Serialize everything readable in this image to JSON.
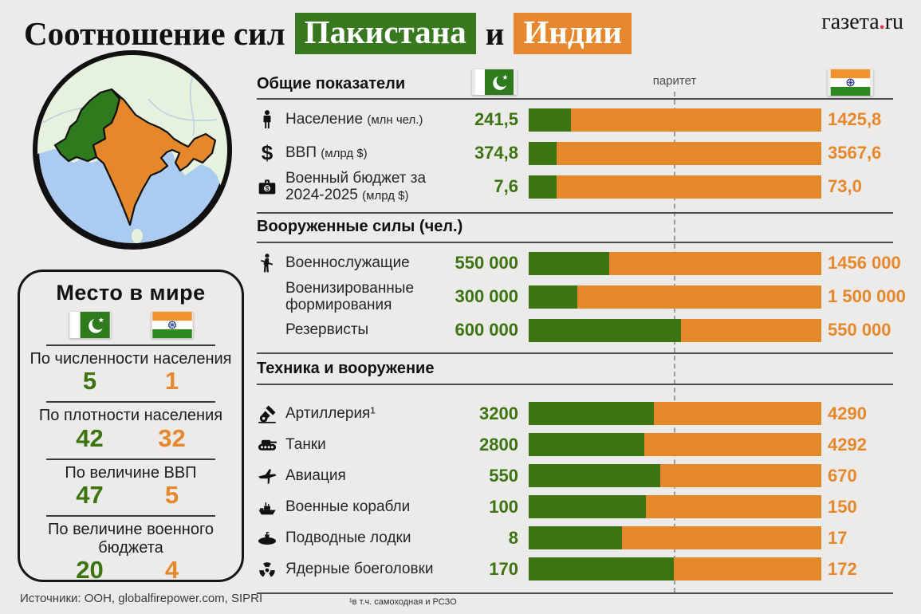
{
  "title": {
    "prefix": "Соотношение сил",
    "pakistan": "Пакистана",
    "conjunction": "и",
    "india": "Индии"
  },
  "logo": {
    "main": "газета",
    "dot": ".",
    "tld": "ru"
  },
  "parity_label": "паритет",
  "sources": "Источники: ООН, globalfirepower.com, SIPRI",
  "footnote": "¹в т.ч. самоходная и РСЗО",
  "colors": {
    "pakistan_green": "#3c7412",
    "india_orange": "#e5882b",
    "badge_green": "#38791f",
    "badge_orange": "#e8882e",
    "background": "#edeaea"
  },
  "world_rank": {
    "title": "Место в мире",
    "flags": [
      "pakistan-flag",
      "india-flag"
    ],
    "rows": [
      {
        "label": "По численности населения",
        "pak": "5",
        "ind": "1"
      },
      {
        "label": "По плотности населения",
        "pak": "42",
        "ind": "32"
      },
      {
        "label": "По величине ВВП",
        "pak": "47",
        "ind": "5"
      },
      {
        "label": "По величине военного бюджета",
        "pak": "20",
        "ind": "4"
      }
    ]
  },
  "chart_data": {
    "type": "bar",
    "variant": "proportional-stacked-horizontal",
    "series": [
      {
        "name": "Пакистан"
      },
      {
        "name": "Индия"
      }
    ],
    "legend": {
      "left_flag": "pakistan-flag",
      "right_flag": "india-flag",
      "parity_line": "center-dashed"
    },
    "sections": [
      {
        "header": "Общие показатели",
        "rows": [
          {
            "icon": "person-icon",
            "label": "Население",
            "note": "(млн чел.)",
            "pak": 241.5,
            "ind": 1425.8,
            "pak_display": "241,5",
            "ind_display": "1425,8"
          },
          {
            "icon": "dollar-icon",
            "label": "ВВП",
            "note": "(млрд $)",
            "pak": 374.8,
            "ind": 3567.6,
            "pak_display": "374,8",
            "ind_display": "3567,6"
          },
          {
            "icon": "briefcase-icon",
            "label": "Военный бюджет за 2024-2025",
            "note": "(млрд $)",
            "pak": 7.6,
            "ind": 73.0,
            "pak_display": "7,6",
            "ind_display": "73,0"
          }
        ]
      },
      {
        "header": "Вооруженные силы (чел.)",
        "rows": [
          {
            "icon": "soldier-icon",
            "label": "Военнослужащие",
            "note": "",
            "pak": 550000,
            "ind": 1456000,
            "pak_display": "550 000",
            "ind_display": "1456 000"
          },
          {
            "icon": "",
            "label": "Военизированные формирования",
            "note": "",
            "pak": 300000,
            "ind": 1500000,
            "pak_display": "300 000",
            "ind_display": "1 500 000"
          },
          {
            "icon": "",
            "label": "Резервисты",
            "note": "",
            "pak": 600000,
            "ind": 550000,
            "pak_display": "600 000",
            "ind_display": "550 000"
          }
        ]
      },
      {
        "header": "Техника и вооружение",
        "rows": [
          {
            "icon": "artillery-icon",
            "label": "Артиллерия¹",
            "note": "",
            "pak": 3200,
            "ind": 4290,
            "pak_display": "3200",
            "ind_display": "4290"
          },
          {
            "icon": "tank-icon",
            "label": "Танки",
            "note": "",
            "pak": 2800,
            "ind": 4292,
            "pak_display": "2800",
            "ind_display": "4292"
          },
          {
            "icon": "jet-icon",
            "label": "Авиация",
            "note": "",
            "pak": 550,
            "ind": 670,
            "pak_display": "550",
            "ind_display": "670"
          },
          {
            "icon": "ship-icon",
            "label": "Военные корабли",
            "note": "",
            "pak": 100,
            "ind": 150,
            "pak_display": "100",
            "ind_display": "150"
          },
          {
            "icon": "submarine-icon",
            "label": "Подводные лодки",
            "note": "",
            "pak": 8,
            "ind": 17,
            "pak_display": "8",
            "ind_display": "17"
          },
          {
            "icon": "warhead-icon",
            "label": "Ядерные боеголовки",
            "note": "",
            "pak": 170,
            "ind": 172,
            "pak_display": "170",
            "ind_display": "172"
          }
        ]
      }
    ]
  }
}
